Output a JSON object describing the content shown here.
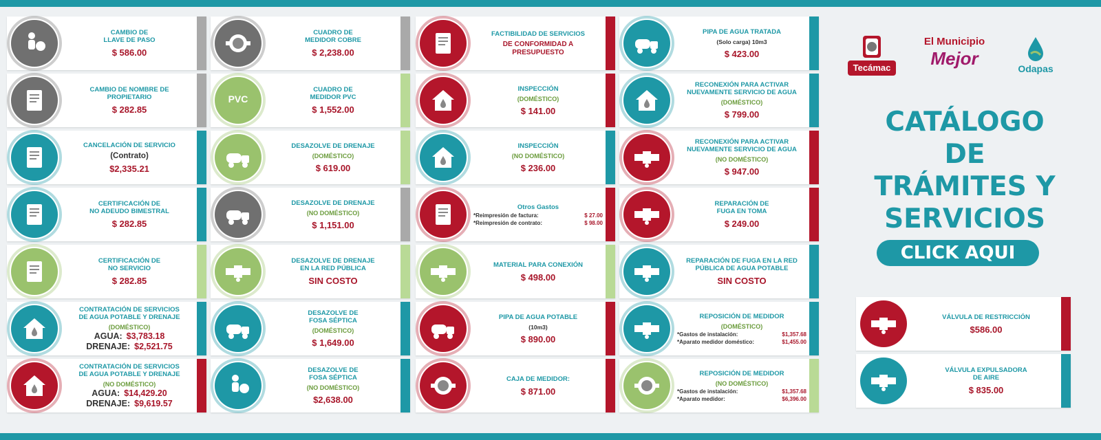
{
  "colors": {
    "teal": "#1e98a6",
    "red": "#b4162b",
    "gray": "#707070",
    "green": "#9ac26d",
    "price": "#a8162a"
  },
  "columns": [
    [
      {
        "color": "gray",
        "icon": "wrench-worker-icon",
        "title": "CAMBIO DE\nLLAVE DE PASO",
        "price": "$ 586.00"
      },
      {
        "color": "gray",
        "icon": "document-person-icon",
        "title": "CAMBIO DE NOMBRE DE\nPROPIETARIO",
        "price": "$ 282.85"
      },
      {
        "color": "teal",
        "icon": "document-cancel-icon",
        "title": "CANCELACIÓN DE SERVICIO",
        "subtitle": "(Contrato)",
        "subtitle_style": "big",
        "price": "$2,335.21"
      },
      {
        "color": "teal",
        "icon": "document-check-icon",
        "title": "CERTIFICACIÓN DE\nNO ADEUDO BIMESTRAL",
        "price": "$ 282.85"
      },
      {
        "color": "green",
        "icon": "document-no-water-icon",
        "title": "CERTIFICACIÓN DE\nNO SERVICIO",
        "price": "$ 282.85"
      },
      {
        "color": "teal",
        "icon": "house-water-icon",
        "title": "CONTRATACIÓN DE SERVICIOS\nDE AGUA POTABLE Y DRENAJE",
        "subtitle": "(DOMÉSTICO)",
        "subtitle_style": "green",
        "pairs": [
          {
            "label": "AGUA:",
            "value": "$3,783.18"
          },
          {
            "label": "DRENAJE:",
            "value": "$2,521.75"
          }
        ]
      },
      {
        "color": "red",
        "icon": "shop-water-icon",
        "title": "CONTRATACIÓN DE SERVICIOS\nDE AGUA POTABLE Y DRENAJE",
        "subtitle": "(NO DOMÉSTICO)",
        "subtitle_style": "green",
        "pairs": [
          {
            "label": "AGUA:",
            "value": "$14,429.20"
          },
          {
            "label": "DRENAJE:",
            "value": "$9,619.57"
          }
        ]
      }
    ],
    [
      {
        "color": "gray",
        "icon": "copper-meter-icon",
        "title": "CUADRO DE\nMEDIDOR COBRE",
        "price": "$ 2,238.00"
      },
      {
        "color": "green",
        "icon": "pvc-icon",
        "icon_text": "PVC",
        "title": "CUADRO DE\nMEDIDOR PVC",
        "price": "$ 1,552.00"
      },
      {
        "color": "green",
        "icon": "drain-truck-icon",
        "title": "DESAZOLVE DE DRENAJE",
        "subtitle": "(DOMÉSTICO)",
        "subtitle_style": "green",
        "price": "$ 619.00"
      },
      {
        "color": "gray",
        "icon": "tanker-truck-icon",
        "title": "DESAZOLVE DE DRENAJE",
        "subtitle": "(NO DOMÉSTICO)",
        "subtitle_style": "green",
        "price": "$ 1,151.00"
      },
      {
        "color": "green",
        "icon": "public-drain-icon",
        "title": "DESAZOLVE DE DRENAJE\nEN LA RED PÚBLICA",
        "price": "SIN COSTO"
      },
      {
        "color": "teal",
        "icon": "septic-tank-icon",
        "title": "DESAZOLVE DE\nFOSA SÉPTICA",
        "subtitle": "(DOMÉSTICO)",
        "subtitle_style": "green",
        "price": "$ 1,649.00"
      },
      {
        "color": "teal",
        "icon": "septic-worker-icon",
        "title": "DESAZOLVE DE\nFOSA SÉPTICA",
        "subtitle": "(NO DOMÉSTICO)",
        "subtitle_style": "green",
        "price": "$2,638.00"
      }
    ],
    [
      {
        "color": "red",
        "icon": "document-water-icon",
        "title": "FACTIBILIDAD DE SERVICIOS",
        "subtitle": "DE CONFORMIDAD A\nPRESUPUESTO",
        "subtitle_style": "red"
      },
      {
        "color": "red",
        "icon": "house-search-icon",
        "title": "INSPECCIÓN",
        "subtitle": "(DOMÉSTICO)",
        "subtitle_style": "green",
        "price": "$ 141.00"
      },
      {
        "color": "teal",
        "icon": "store-icon",
        "title": "INSPECCIÓN",
        "subtitle": "(NO DOMÉSTICO)",
        "subtitle_style": "green",
        "price": "$ 236.00"
      },
      {
        "color": "red",
        "icon": "document-lines-icon",
        "title": "Otros Gastos",
        "lines": [
          {
            "label": "*Reimpresión de factura:",
            "value": "$ 27.00"
          },
          {
            "label": "*Reimpresión de contrato:",
            "value": "$ 98.00"
          }
        ]
      },
      {
        "color": "green",
        "icon": "valve-pipe-icon",
        "title": "MATERIAL PARA CONEXIÓN",
        "price": "$ 498.00"
      },
      {
        "color": "red",
        "icon": "water-truck-icon",
        "title": "PIPA DE AGUA POTABLE",
        "subtitle": "(10m3)",
        "subtitle_style": "dark",
        "price": "$ 890.00"
      },
      {
        "color": "red",
        "icon": "meter-box-icon",
        "title": "CAJA DE MEDIDOR:",
        "price": "$ 871.00"
      }
    ],
    [
      {
        "color": "teal",
        "icon": "water-tank-icon",
        "title": "PIPA DE AGUA TRATADA",
        "subtitle": "(Solo carga) 10m3",
        "subtitle_style": "dark",
        "price": "$ 423.00"
      },
      {
        "color": "teal",
        "icon": "house-faucet-icon",
        "title": "RECONEXIÓN PARA ACTIVAR\nNUEVAMENTE SERVICIO DE AGUA",
        "subtitle": "(DOMÉSTICO)",
        "subtitle_style": "green",
        "price": "$ 799.00"
      },
      {
        "color": "red",
        "icon": "faucet-hand-icon",
        "title": "RECONEXIÓN PARA ACTIVAR\nNUEVAMENTE SERVICIO DE AGUA",
        "subtitle": "(NO DOMÉSTICO)",
        "subtitle_style": "green",
        "price": "$ 947.00"
      },
      {
        "color": "red",
        "icon": "pipe-leak-icon",
        "title": "REPARACIÓN DE\nFUGA EN TOMA",
        "price": "$ 249.00"
      },
      {
        "color": "teal",
        "icon": "pipe-network-icon",
        "title": "REPARACIÓN DE FUGA EN LA RED\nPÚBLICA DE AGUA POTABLE",
        "price": "SIN COSTO"
      },
      {
        "color": "teal",
        "icon": "meter-valve-icon",
        "title": "REPOSICIÓN DE MEDIDOR",
        "subtitle": "(DOMÉSTICO)",
        "subtitle_style": "green",
        "lines": [
          {
            "label": "*Gastos de instalación:",
            "value": "$1,357.68"
          },
          {
            "label": "*Aparato medidor doméstico:",
            "value": "$1,455.00"
          }
        ]
      },
      {
        "color": "green",
        "icon": "meter-dial-icon",
        "title": "REPOSICIÓN DE MEDIDOR",
        "subtitle": "(NO DOMÉSTICO)",
        "subtitle_style": "green",
        "lines": [
          {
            "label": "*Gastos de instalación:",
            "value": "$1,357.68"
          },
          {
            "label": "*Aparato medidor:",
            "value": "$6,396.00"
          }
        ]
      }
    ]
  ],
  "right_panel": {
    "logos": {
      "tecamac": "Tecámac",
      "municipio_line1": "El Municipio",
      "municipio_line2": "Mejor",
      "odapas": "Odapas"
    },
    "title": "CATÁLOGO DE\nTRÁMITES Y\nSERVICIOS",
    "cta": "CLICK AQUI",
    "cards": [
      {
        "color": "red",
        "icon": "restriction-valve-icon",
        "title": "VÁLVULA DE RESTRICCIÓN",
        "price": "$586.00"
      },
      {
        "color": "teal",
        "icon": "air-valve-worker-icon",
        "title": "VÁLVULA EXPULSADORA\nDE AIRE",
        "price": "$ 835.00"
      }
    ]
  }
}
